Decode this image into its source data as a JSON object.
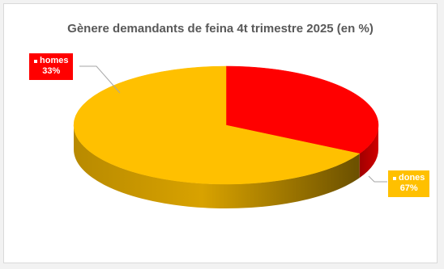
{
  "chart_data": {
    "type": "pie",
    "title": "Gènere demandants de feina 4t trimestre 2025 (en %)",
    "slices": [
      {
        "label": "homes",
        "value": 33,
        "value_label": "33%",
        "color": "#ff0000"
      },
      {
        "label": "dones",
        "value": 67,
        "value_label": "67%",
        "color": "#ffc000"
      }
    ],
    "three_d": true,
    "legend": "none",
    "data_labels": "outside with leader lines"
  }
}
